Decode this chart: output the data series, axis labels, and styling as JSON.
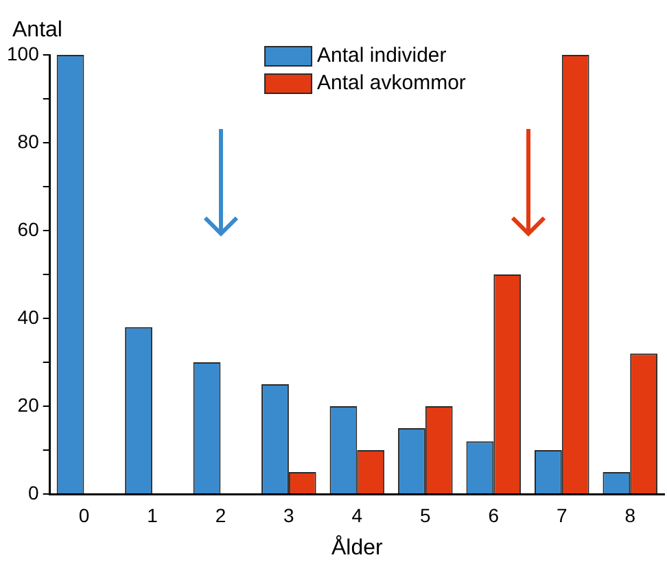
{
  "chart_data": {
    "type": "bar",
    "xlabel": "Ålder",
    "ylabel": "Antal",
    "categories": [
      "0",
      "1",
      "2",
      "3",
      "4",
      "5",
      "6",
      "7",
      "8"
    ],
    "series": [
      {
        "name": "Antal individer",
        "color": "#3a8bcd",
        "values": [
          100,
          38,
          30,
          25,
          20,
          15,
          12,
          10,
          5
        ]
      },
      {
        "name": "Antal avkommor",
        "color": "#e33a12",
        "values": [
          null,
          null,
          null,
          5,
          10,
          20,
          50,
          100,
          32
        ]
      }
    ],
    "ylim": [
      0,
      100
    ],
    "yticks": [
      0,
      {
        "value": 10,
        "label": null
      },
      20,
      {
        "value": 30,
        "label": null
      },
      40,
      {
        "value": 50,
        "label": null
      },
      60,
      {
        "value": 70,
        "label": null
      },
      80,
      {
        "value": 90,
        "label": null
      },
      100
    ],
    "grid": false,
    "legend": "top"
  }
}
